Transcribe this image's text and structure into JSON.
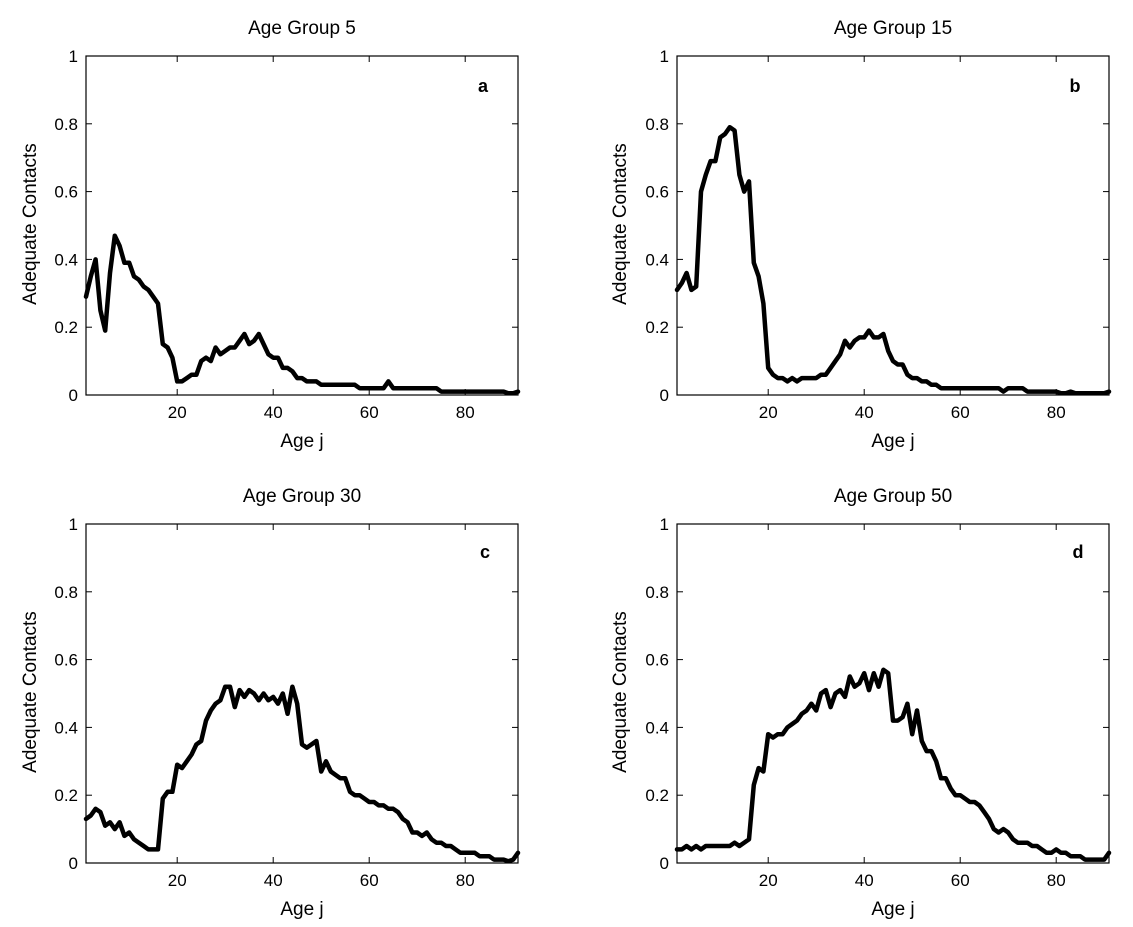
{
  "chart_data": [
    {
      "type": "line",
      "title": "Age Group 5",
      "xlabel": "Age j",
      "ylabel": "Adequate Contacts",
      "annotation": "a",
      "xlim": [
        1,
        91
      ],
      "ylim": [
        0,
        1
      ],
      "xticks": [
        20,
        40,
        60,
        80
      ],
      "yticks": [
        0,
        0.2,
        0.4,
        0.6,
        0.8,
        1
      ],
      "grid": false,
      "series": [
        {
          "x": [
            1,
            2,
            3,
            4,
            5,
            6,
            7,
            8,
            9,
            10,
            11,
            12,
            13,
            14,
            15,
            16,
            17,
            18,
            19,
            20,
            21,
            22,
            23,
            24,
            25,
            26,
            27,
            28,
            29,
            30,
            31,
            32,
            33,
            34,
            35,
            36,
            37,
            38,
            39,
            40,
            41,
            42,
            43,
            44,
            45,
            46,
            47,
            48,
            49,
            50,
            51,
            52,
            53,
            54,
            55,
            56,
            57,
            58,
            59,
            60,
            61,
            62,
            63,
            64,
            65,
            66,
            67,
            68,
            69,
            70,
            71,
            72,
            73,
            74,
            75,
            76,
            77,
            78,
            79,
            80,
            81,
            82,
            83,
            84,
            85,
            86,
            87,
            88,
            89,
            90,
            91
          ],
          "y": [
            0.29,
            0.35,
            0.4,
            0.25,
            0.19,
            0.36,
            0.47,
            0.44,
            0.39,
            0.39,
            0.35,
            0.34,
            0.32,
            0.31,
            0.29,
            0.27,
            0.15,
            0.14,
            0.11,
            0.04,
            0.04,
            0.05,
            0.06,
            0.06,
            0.1,
            0.11,
            0.1,
            0.14,
            0.12,
            0.13,
            0.14,
            0.14,
            0.16,
            0.18,
            0.15,
            0.16,
            0.18,
            0.15,
            0.12,
            0.11,
            0.11,
            0.08,
            0.08,
            0.07,
            0.05,
            0.05,
            0.04,
            0.04,
            0.04,
            0.03,
            0.03,
            0.03,
            0.03,
            0.03,
            0.03,
            0.03,
            0.03,
            0.02,
            0.02,
            0.02,
            0.02,
            0.02,
            0.02,
            0.04,
            0.02,
            0.02,
            0.02,
            0.02,
            0.02,
            0.02,
            0.02,
            0.02,
            0.02,
            0.02,
            0.01,
            0.01,
            0.01,
            0.01,
            0.01,
            0.01,
            0.01,
            0.01,
            0.01,
            0.01,
            0.01,
            0.01,
            0.01,
            0.01,
            0.005,
            0.005,
            0.01
          ]
        }
      ]
    },
    {
      "type": "line",
      "title": "Age Group 15",
      "xlabel": "Age j",
      "ylabel": "Adequate Contacts",
      "annotation": "b",
      "xlim": [
        1,
        91
      ],
      "ylim": [
        0,
        1
      ],
      "xticks": [
        20,
        40,
        60,
        80
      ],
      "yticks": [
        0,
        0.2,
        0.4,
        0.6,
        0.8,
        1
      ],
      "grid": false,
      "series": [
        {
          "x": [
            1,
            2,
            3,
            4,
            5,
            6,
            7,
            8,
            9,
            10,
            11,
            12,
            13,
            14,
            15,
            16,
            17,
            18,
            19,
            20,
            21,
            22,
            23,
            24,
            25,
            26,
            27,
            28,
            29,
            30,
            31,
            32,
            33,
            34,
            35,
            36,
            37,
            38,
            39,
            40,
            41,
            42,
            43,
            44,
            45,
            46,
            47,
            48,
            49,
            50,
            51,
            52,
            53,
            54,
            55,
            56,
            57,
            58,
            59,
            60,
            61,
            62,
            63,
            64,
            65,
            66,
            67,
            68,
            69,
            70,
            71,
            72,
            73,
            74,
            75,
            76,
            77,
            78,
            79,
            80,
            81,
            82,
            83,
            84,
            85,
            86,
            87,
            88,
            89,
            90,
            91
          ],
          "y": [
            0.31,
            0.33,
            0.36,
            0.31,
            0.32,
            0.6,
            0.65,
            0.69,
            0.69,
            0.76,
            0.77,
            0.79,
            0.78,
            0.65,
            0.6,
            0.63,
            0.39,
            0.35,
            0.27,
            0.08,
            0.06,
            0.05,
            0.05,
            0.04,
            0.05,
            0.04,
            0.05,
            0.05,
            0.05,
            0.05,
            0.06,
            0.06,
            0.08,
            0.1,
            0.12,
            0.16,
            0.14,
            0.16,
            0.17,
            0.17,
            0.19,
            0.17,
            0.17,
            0.18,
            0.13,
            0.1,
            0.09,
            0.09,
            0.06,
            0.05,
            0.05,
            0.04,
            0.04,
            0.03,
            0.03,
            0.02,
            0.02,
            0.02,
            0.02,
            0.02,
            0.02,
            0.02,
            0.02,
            0.02,
            0.02,
            0.02,
            0.02,
            0.02,
            0.01,
            0.02,
            0.02,
            0.02,
            0.02,
            0.01,
            0.01,
            0.01,
            0.01,
            0.01,
            0.01,
            0.01,
            0.005,
            0.005,
            0.01,
            0.005,
            0.005,
            0.005,
            0.005,
            0.005,
            0.005,
            0.005,
            0.01
          ]
        }
      ]
    },
    {
      "type": "line",
      "title": "Age Group 30",
      "xlabel": "Age j",
      "ylabel": "Adequate Contacts",
      "annotation": "c",
      "xlim": [
        1,
        91
      ],
      "ylim": [
        0,
        1
      ],
      "xticks": [
        20,
        40,
        60,
        80
      ],
      "yticks": [
        0,
        0.2,
        0.4,
        0.6,
        0.8,
        1
      ],
      "grid": false,
      "series": [
        {
          "x": [
            1,
            2,
            3,
            4,
            5,
            6,
            7,
            8,
            9,
            10,
            11,
            12,
            13,
            14,
            15,
            16,
            17,
            18,
            19,
            20,
            21,
            22,
            23,
            24,
            25,
            26,
            27,
            28,
            29,
            30,
            31,
            32,
            33,
            34,
            35,
            36,
            37,
            38,
            39,
            40,
            41,
            42,
            43,
            44,
            45,
            46,
            47,
            48,
            49,
            50,
            51,
            52,
            53,
            54,
            55,
            56,
            57,
            58,
            59,
            60,
            61,
            62,
            63,
            64,
            65,
            66,
            67,
            68,
            69,
            70,
            71,
            72,
            73,
            74,
            75,
            76,
            77,
            78,
            79,
            80,
            81,
            82,
            83,
            84,
            85,
            86,
            87,
            88,
            89,
            90,
            91
          ],
          "y": [
            0.13,
            0.14,
            0.16,
            0.15,
            0.11,
            0.12,
            0.1,
            0.12,
            0.08,
            0.09,
            0.07,
            0.06,
            0.05,
            0.04,
            0.04,
            0.04,
            0.19,
            0.21,
            0.21,
            0.29,
            0.28,
            0.3,
            0.32,
            0.35,
            0.36,
            0.42,
            0.45,
            0.47,
            0.48,
            0.52,
            0.52,
            0.46,
            0.51,
            0.49,
            0.51,
            0.5,
            0.48,
            0.5,
            0.48,
            0.49,
            0.47,
            0.5,
            0.44,
            0.52,
            0.47,
            0.35,
            0.34,
            0.35,
            0.36,
            0.27,
            0.3,
            0.27,
            0.26,
            0.25,
            0.25,
            0.21,
            0.2,
            0.2,
            0.19,
            0.18,
            0.18,
            0.17,
            0.17,
            0.16,
            0.16,
            0.15,
            0.13,
            0.12,
            0.09,
            0.09,
            0.08,
            0.09,
            0.07,
            0.06,
            0.06,
            0.05,
            0.05,
            0.04,
            0.03,
            0.03,
            0.03,
            0.03,
            0.02,
            0.02,
            0.02,
            0.01,
            0.01,
            0.01,
            0.005,
            0.01,
            0.03
          ]
        }
      ]
    },
    {
      "type": "line",
      "title": "Age Group 50",
      "xlabel": "Age j",
      "ylabel": "Adequate Contacts",
      "annotation": "d",
      "xlim": [
        1,
        91
      ],
      "ylim": [
        0,
        1
      ],
      "xticks": [
        20,
        40,
        60,
        80
      ],
      "yticks": [
        0,
        0.2,
        0.4,
        0.6,
        0.8,
        1
      ],
      "grid": false,
      "series": [
        {
          "x": [
            1,
            2,
            3,
            4,
            5,
            6,
            7,
            8,
            9,
            10,
            11,
            12,
            13,
            14,
            15,
            16,
            17,
            18,
            19,
            20,
            21,
            22,
            23,
            24,
            25,
            26,
            27,
            28,
            29,
            30,
            31,
            32,
            33,
            34,
            35,
            36,
            37,
            38,
            39,
            40,
            41,
            42,
            43,
            44,
            45,
            46,
            47,
            48,
            49,
            50,
            51,
            52,
            53,
            54,
            55,
            56,
            57,
            58,
            59,
            60,
            61,
            62,
            63,
            64,
            65,
            66,
            67,
            68,
            69,
            70,
            71,
            72,
            73,
            74,
            75,
            76,
            77,
            78,
            79,
            80,
            81,
            82,
            83,
            84,
            85,
            86,
            87,
            88,
            89,
            90,
            91
          ],
          "y": [
            0.04,
            0.04,
            0.05,
            0.04,
            0.05,
            0.04,
            0.05,
            0.05,
            0.05,
            0.05,
            0.05,
            0.05,
            0.06,
            0.05,
            0.06,
            0.07,
            0.23,
            0.28,
            0.27,
            0.38,
            0.37,
            0.38,
            0.38,
            0.4,
            0.41,
            0.42,
            0.44,
            0.45,
            0.47,
            0.45,
            0.5,
            0.51,
            0.46,
            0.5,
            0.51,
            0.49,
            0.55,
            0.52,
            0.53,
            0.56,
            0.51,
            0.56,
            0.52,
            0.57,
            0.56,
            0.42,
            0.42,
            0.43,
            0.47,
            0.38,
            0.45,
            0.36,
            0.33,
            0.33,
            0.3,
            0.25,
            0.25,
            0.22,
            0.2,
            0.2,
            0.19,
            0.18,
            0.18,
            0.17,
            0.15,
            0.13,
            0.1,
            0.09,
            0.1,
            0.09,
            0.07,
            0.06,
            0.06,
            0.06,
            0.05,
            0.05,
            0.04,
            0.03,
            0.03,
            0.04,
            0.03,
            0.03,
            0.02,
            0.02,
            0.02,
            0.01,
            0.01,
            0.01,
            0.01,
            0.01,
            0.03
          ]
        }
      ]
    }
  ]
}
